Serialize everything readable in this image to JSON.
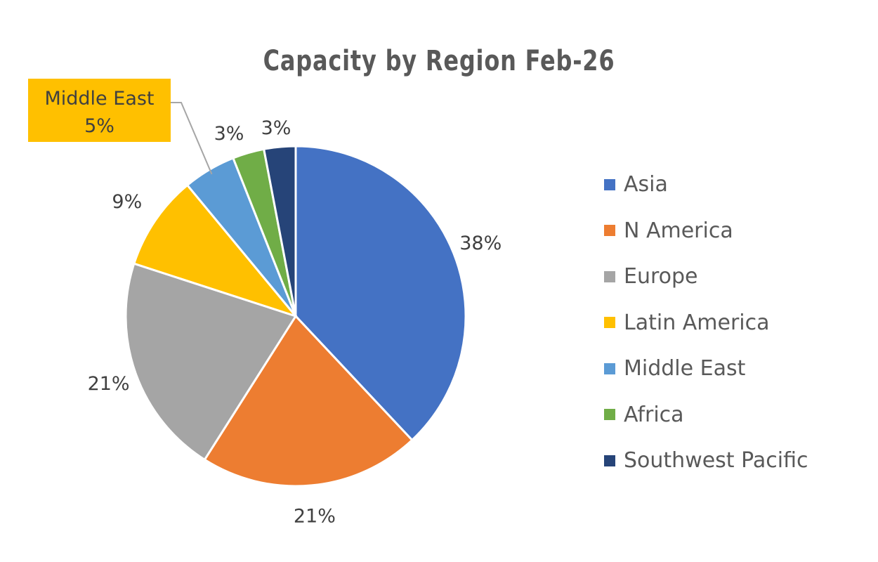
{
  "chart_data": {
    "type": "pie",
    "title": "Capacity by Region Feb-26",
    "legend_position": "right",
    "start_angle_deg": 0,
    "direction": "clockwise",
    "slices": [
      {
        "name": "Asia",
        "value": 38,
        "label": "38%",
        "color": "#4472C4"
      },
      {
        "name": "N America",
        "value": 21,
        "label": "21%",
        "color": "#ED7D31"
      },
      {
        "name": "Europe",
        "value": 21,
        "label": "21%",
        "color": "#A5A5A5"
      },
      {
        "name": "Latin America",
        "value": 9,
        "label": "9%",
        "color": "#FFC000"
      },
      {
        "name": "Middle East",
        "value": 5,
        "label": "5%",
        "color": "#5B9BD5",
        "callout": true,
        "callout_fill": "#FFC000"
      },
      {
        "name": "Africa",
        "value": 3,
        "label": "3%",
        "color": "#70AD47"
      },
      {
        "name": "Southwest Pacific",
        "value": 3,
        "label": "3%",
        "color": "#264478"
      }
    ]
  }
}
